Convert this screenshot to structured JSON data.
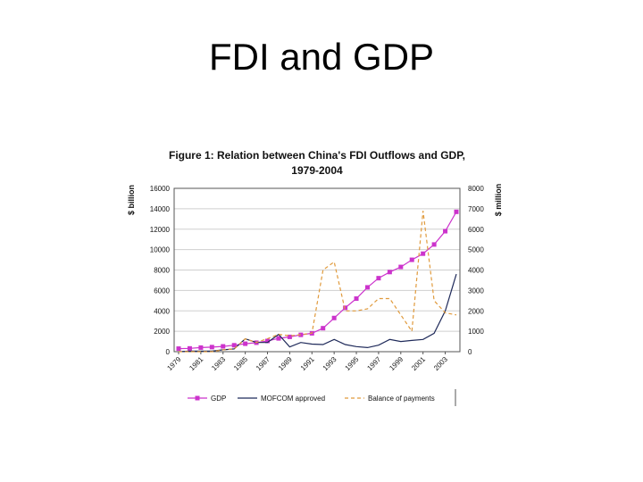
{
  "slide": {
    "title": "FDI and GDP"
  },
  "colors": {
    "gdp": "#cc33cc",
    "mofcom": "#1f2a5a",
    "bop": "#e09a3c",
    "grid": "#cfcfcf",
    "axis": "#555555"
  },
  "chart_data": {
    "type": "line",
    "title_line1": "Figure 1: Relation between China's FDI Outflows and GDP,",
    "title_line2": "1979-2004",
    "ylabel_left": "$ billion",
    "ylabel_right": "$ million",
    "ylim_left": [
      0,
      16000
    ],
    "ylim_right": [
      0,
      8000
    ],
    "yticks_left": [
      "0",
      "2000",
      "4000",
      "6000",
      "8000",
      "10000",
      "12000",
      "14000",
      "16000"
    ],
    "yticks_right": [
      "0",
      "1000",
      "2000",
      "3000",
      "4000",
      "5000",
      "6000",
      "7000",
      "8000"
    ],
    "grid": true,
    "legend_position": "bottom",
    "x": [
      1979,
      1980,
      1981,
      1982,
      1983,
      1984,
      1985,
      1986,
      1987,
      1988,
      1989,
      1990,
      1991,
      1992,
      1993,
      1994,
      1995,
      1996,
      1997,
      1998,
      1999,
      2000,
      2001,
      2002,
      2003,
      2004
    ],
    "x_tick_labels": [
      "1979",
      "1981",
      "1983",
      "1985",
      "1987",
      "1989",
      "1991",
      "1993",
      "1995",
      "1997",
      "1999",
      "2001",
      "2003"
    ],
    "series": [
      {
        "name": "GDP",
        "axis": "left",
        "values": [
          300,
          320,
          400,
          450,
          520,
          630,
          780,
          880,
          1050,
          1300,
          1450,
          1650,
          1800,
          2300,
          3300,
          4300,
          5200,
          6300,
          7200,
          7800,
          8300,
          9000,
          9600,
          10500,
          11800,
          13700
        ]
      },
      {
        "name": "MOFCOM approved",
        "axis": "right",
        "values": [
          2,
          30,
          30,
          30,
          90,
          135,
          630,
          450,
          450,
          850,
          230,
          450,
          370,
          350,
          600,
          350,
          250,
          200,
          320,
          600,
          500,
          550,
          600,
          900,
          2000,
          3800
        ]
      },
      {
        "name": "Balance of payments",
        "axis": "right",
        "values": [
          0,
          0,
          0,
          0,
          90,
          130,
          630,
          450,
          640,
          850,
          780,
          830,
          910,
          4000,
          4400,
          2000,
          2000,
          2100,
          2600,
          2600,
          1800,
          1000,
          6900,
          2500,
          1900,
          1800
        ]
      }
    ]
  }
}
